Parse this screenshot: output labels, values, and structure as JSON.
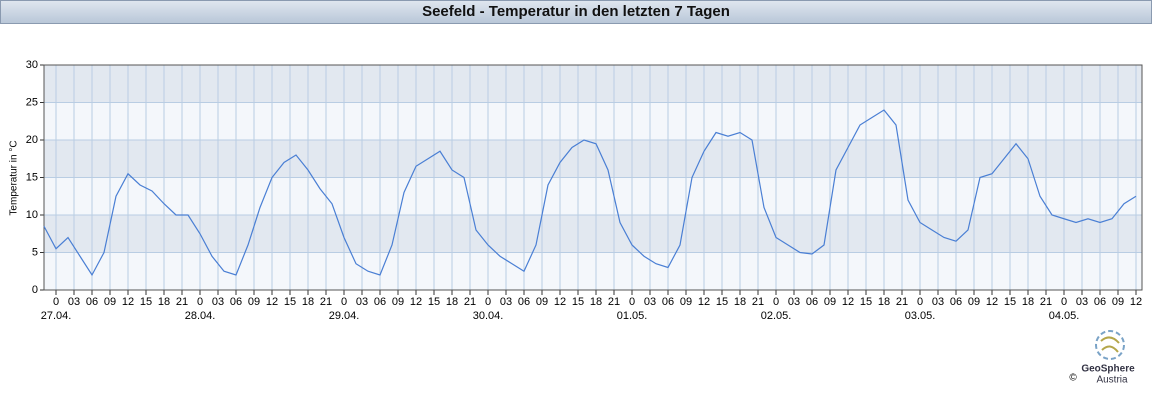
{
  "chart_data": {
    "type": "line",
    "title": "Seefeld - Temperatur in den letzten 7 Tagen",
    "y_label": "Temperatur in °C",
    "x": [
      -2,
      0,
      2,
      4,
      6,
      8,
      10,
      12,
      14,
      16,
      18,
      20,
      22,
      24,
      26,
      28,
      30,
      32,
      34,
      36,
      38,
      40,
      42,
      44,
      46,
      48,
      50,
      52,
      54,
      56,
      58,
      60,
      62,
      64,
      66,
      68,
      70,
      72,
      74,
      76,
      78,
      80,
      82,
      84,
      86,
      88,
      90,
      92,
      94,
      96,
      98,
      100,
      102,
      104,
      106,
      108,
      110,
      112,
      114,
      116,
      118,
      120,
      122,
      124,
      126,
      128,
      130,
      132,
      134,
      136,
      138,
      140,
      142,
      144,
      146,
      148,
      150,
      152,
      154,
      156,
      158,
      160,
      162,
      164,
      166,
      168,
      170,
      172,
      174,
      176,
      178,
      180
    ],
    "series": [
      {
        "name": "Temperatur",
        "color": "#4a7fd4",
        "values": [
          8.5,
          5.5,
          7,
          4.5,
          2,
          5,
          12.5,
          15.5,
          14,
          13.2,
          11.5,
          10,
          10,
          7.5,
          4.5,
          2.5,
          2,
          6,
          11,
          15,
          17,
          18,
          16,
          13.5,
          11.5,
          7,
          3.5,
          2.5,
          2,
          6,
          13,
          16.5,
          17.5,
          18.5,
          16,
          15,
          8,
          6,
          4.5,
          3.5,
          2.5,
          6,
          14,
          17,
          19,
          20,
          19.5,
          16,
          9,
          6,
          4.5,
          3.5,
          3,
          6,
          15,
          18.5,
          21,
          20.5,
          21,
          20,
          11,
          7,
          6,
          5,
          4.8,
          6,
          16,
          19,
          22,
          23,
          24,
          22,
          12,
          9,
          8,
          7,
          6.5,
          8,
          15,
          15.5,
          17.5,
          19.5,
          17.5,
          12.5,
          10,
          9.5,
          9,
          9.5,
          9,
          9.5,
          11.5,
          12.5
        ]
      }
    ],
    "xlim": [
      -2,
      181
    ],
    "ylim": [
      0,
      30
    ],
    "yticks": [
      0,
      5,
      10,
      15,
      20,
      25,
      30
    ],
    "xticks": [
      {
        "value": 0,
        "label": "0"
      },
      {
        "value": 3,
        "label": "03"
      },
      {
        "value": 6,
        "label": "06"
      },
      {
        "value": 9,
        "label": "09"
      },
      {
        "value": 12,
        "label": "12"
      },
      {
        "value": 15,
        "label": "15"
      },
      {
        "value": 18,
        "label": "18"
      },
      {
        "value": 21,
        "label": "21"
      },
      {
        "value": 24,
        "label": "0"
      },
      {
        "value": 27,
        "label": "03"
      },
      {
        "value": 30,
        "label": "06"
      },
      {
        "value": 33,
        "label": "09"
      },
      {
        "value": 36,
        "label": "12"
      },
      {
        "value": 39,
        "label": "15"
      },
      {
        "value": 42,
        "label": "18"
      },
      {
        "value": 45,
        "label": "21"
      },
      {
        "value": 48,
        "label": "0"
      },
      {
        "value": 51,
        "label": "03"
      },
      {
        "value": 54,
        "label": "06"
      },
      {
        "value": 57,
        "label": "09"
      },
      {
        "value": 60,
        "label": "12"
      },
      {
        "value": 63,
        "label": "15"
      },
      {
        "value": 66,
        "label": "18"
      },
      {
        "value": 69,
        "label": "21"
      },
      {
        "value": 72,
        "label": "0"
      },
      {
        "value": 75,
        "label": "03"
      },
      {
        "value": 78,
        "label": "06"
      },
      {
        "value": 81,
        "label": "09"
      },
      {
        "value": 84,
        "label": "12"
      },
      {
        "value": 87,
        "label": "15"
      },
      {
        "value": 90,
        "label": "18"
      },
      {
        "value": 93,
        "label": "21"
      },
      {
        "value": 96,
        "label": "0"
      },
      {
        "value": 99,
        "label": "03"
      },
      {
        "value": 102,
        "label": "06"
      },
      {
        "value": 105,
        "label": "09"
      },
      {
        "value": 108,
        "label": "12"
      },
      {
        "value": 111,
        "label": "15"
      },
      {
        "value": 114,
        "label": "18"
      },
      {
        "value": 117,
        "label": "21"
      },
      {
        "value": 120,
        "label": "0"
      },
      {
        "value": 123,
        "label": "03"
      },
      {
        "value": 126,
        "label": "06"
      },
      {
        "value": 129,
        "label": "09"
      },
      {
        "value": 132,
        "label": "12"
      },
      {
        "value": 135,
        "label": "15"
      },
      {
        "value": 138,
        "label": "18"
      },
      {
        "value": 141,
        "label": "21"
      },
      {
        "value": 144,
        "label": "0"
      },
      {
        "value": 147,
        "label": "03"
      },
      {
        "value": 150,
        "label": "06"
      },
      {
        "value": 153,
        "label": "09"
      },
      {
        "value": 156,
        "label": "12"
      },
      {
        "value": 159,
        "label": "15"
      },
      {
        "value": 162,
        "label": "18"
      },
      {
        "value": 165,
        "label": "21"
      },
      {
        "value": 168,
        "label": "0"
      },
      {
        "value": 171,
        "label": "03"
      },
      {
        "value": 174,
        "label": "06"
      },
      {
        "value": 177,
        "label": "09"
      },
      {
        "value": 180,
        "label": "12"
      }
    ],
    "date_labels": [
      {
        "value": 0,
        "label": "27.04."
      },
      {
        "value": 24,
        "label": "28.04."
      },
      {
        "value": 48,
        "label": "29.04."
      },
      {
        "value": 72,
        "label": "30.04."
      },
      {
        "value": 96,
        "label": "01.05."
      },
      {
        "value": 120,
        "label": "02.05."
      },
      {
        "value": 144,
        "label": "03.05."
      },
      {
        "value": 168,
        "label": "04.05."
      }
    ],
    "grid": true
  },
  "footer": {
    "logo_name": "GeoSphere",
    "logo_country": "Austria",
    "copyright": "©"
  }
}
